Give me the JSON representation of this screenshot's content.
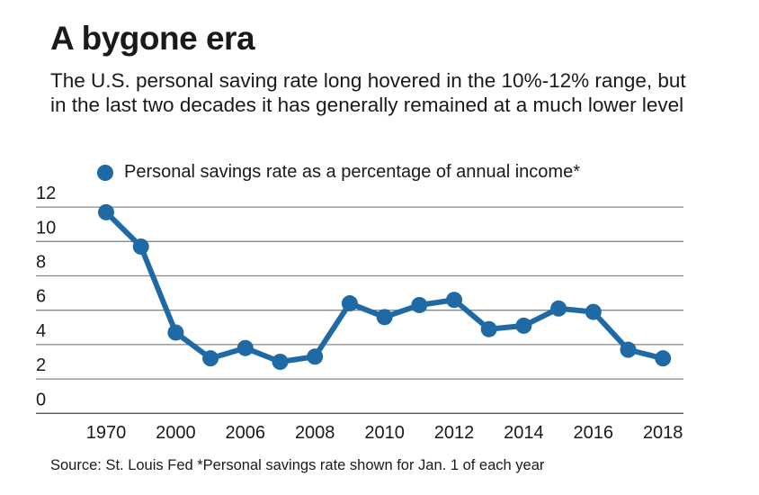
{
  "title": "A bygone era",
  "subtitle": "The U.S. personal saving rate long hovered in the 10%-12% range, but in the last two decades it has generally remained at a much lower level",
  "source": "Source: St. Louis Fed *Personal savings rate shown for Jan. 1 of each year",
  "chart_data": {
    "type": "line",
    "title": "A bygone era",
    "categories": [
      "1970",
      "",
      "2000",
      "",
      "2006",
      "",
      "2008",
      "",
      "2010",
      "",
      "2012",
      "",
      "2014",
      "",
      "2016",
      "",
      "2018"
    ],
    "series": [
      {
        "name": "Personal savings rate as a percentage of annual income*",
        "color": "#1f6aa5",
        "values": [
          11.7,
          9.7,
          4.7,
          3.2,
          3.8,
          3.0,
          3.3,
          6.4,
          5.6,
          6.3,
          6.6,
          4.9,
          5.1,
          6.1,
          5.9,
          3.7,
          3.2
        ]
      }
    ],
    "yticks": [
      "0",
      "2",
      "4",
      "6",
      "8",
      "10",
      "12"
    ],
    "ylim": [
      0,
      12
    ],
    "grid": true,
    "legend": "top"
  }
}
